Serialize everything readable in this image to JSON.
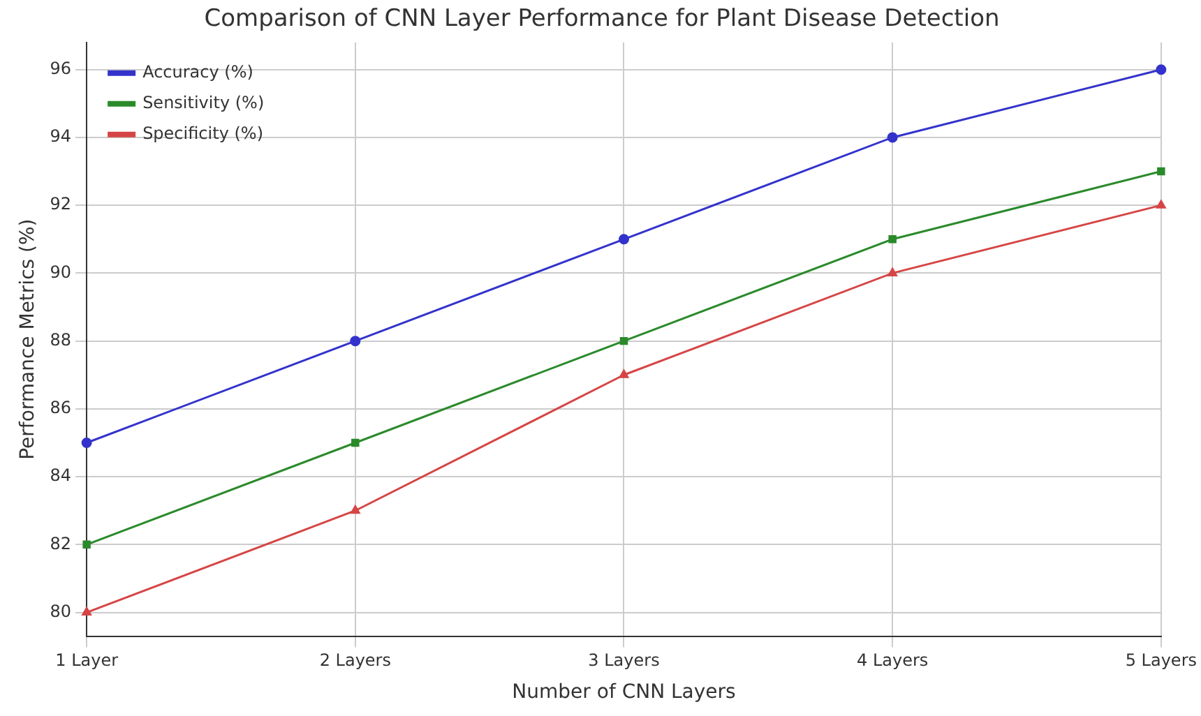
{
  "chart_data": {
    "type": "line",
    "title": "Comparison of CNN Layer Performance for Plant Disease Detection",
    "xlabel": "Number of CNN Layers",
    "ylabel": "Performance Metrics (%)",
    "categories": [
      "1 Layer",
      "2 Layers",
      "3 Layers",
      "4 Layers",
      "5 Layers"
    ],
    "series": [
      {
        "name": "Accuracy (%)",
        "color": "#3333cc",
        "values": [
          85,
          88,
          91,
          94,
          96
        ],
        "marker": "circle"
      },
      {
        "name": "Sensitivity (%)",
        "color": "#2a8a2a",
        "values": [
          82,
          85,
          88,
          91,
          93
        ],
        "marker": "square"
      },
      {
        "name": "Specificity (%)",
        "color": "#d64545",
        "values": [
          80,
          83,
          87,
          90,
          92
        ],
        "marker": "triangle"
      }
    ],
    "ylim": [
      79.3,
      96.8
    ],
    "yticks": [
      80,
      82,
      84,
      86,
      88,
      90,
      92,
      94,
      96
    ],
    "grid": true,
    "legend": "top left",
    "line_style": "solid"
  }
}
